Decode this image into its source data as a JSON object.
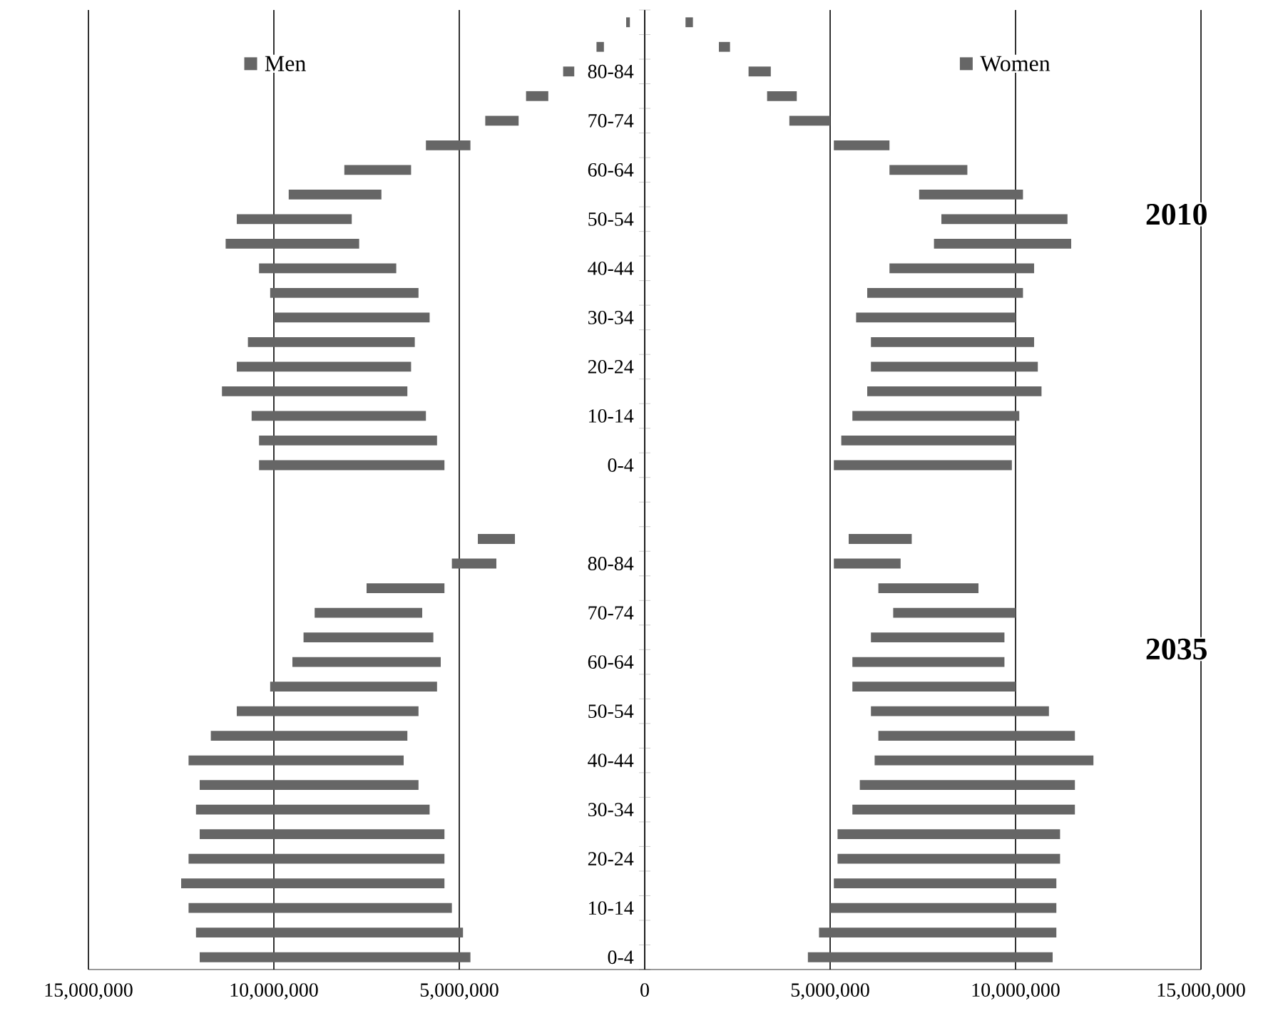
{
  "chart_data": {
    "type": "bar",
    "orientation": "horizontal",
    "categories": [
      null,
      null,
      "80-84",
      null,
      "70-74",
      null,
      "60-64",
      null,
      "50-54",
      null,
      "40-44",
      null,
      "30-34",
      null,
      "20-24",
      null,
      "10-14",
      null,
      "0-4",
      null,
      null,
      null,
      "80-84",
      null,
      "70-74",
      null,
      "60-64",
      null,
      "50-54",
      null,
      "40-44",
      null,
      "30-34",
      null,
      "20-24",
      null,
      "10-14",
      null,
      "0-4"
    ],
    "series": [
      {
        "name": "Men",
        "color": "#666666",
        "base": [
          -400000,
          -1100000,
          -1900000,
          -2600000,
          -3400000,
          -4700000,
          -6300000,
          -7100000,
          -7900000,
          -7700000,
          -6700000,
          -6100000,
          -5800000,
          -6200000,
          -6300000,
          -6400000,
          -5900000,
          -5600000,
          -5400000,
          null,
          null,
          -3500000,
          -4000000,
          -5400000,
          -6000000,
          -5700000,
          -5500000,
          -5600000,
          -6100000,
          -6400000,
          -6500000,
          -6100000,
          -5800000,
          -5400000,
          -5400000,
          -5400000,
          -5200000,
          -4900000,
          -4700000
        ],
        "values": [
          -100000,
          -200000,
          -300000,
          -600000,
          -900000,
          -1200000,
          -1800000,
          -2500000,
          -3100000,
          -3600000,
          -3700000,
          -4000000,
          -4200000,
          -4500000,
          -4700000,
          -5000000,
          -4700000,
          -4800000,
          -5000000,
          null,
          null,
          -1000000,
          -1200000,
          -2100000,
          -2900000,
          -3500000,
          -4000000,
          -4500000,
          -4900000,
          -5300000,
          -5800000,
          -5900000,
          -6300000,
          -6600000,
          -6900000,
          -7100000,
          -7100000,
          -7200000,
          -7300000
        ]
      },
      {
        "name": "Women",
        "color": "#666666",
        "base": [
          1100000,
          2000000,
          2800000,
          3300000,
          3900000,
          5100000,
          6600000,
          7400000,
          8000000,
          7800000,
          6600000,
          6000000,
          5700000,
          6100000,
          6100000,
          6000000,
          5600000,
          5300000,
          5100000,
          null,
          null,
          5500000,
          5100000,
          6300000,
          6700000,
          6100000,
          5600000,
          5600000,
          6100000,
          6300000,
          6200000,
          5800000,
          5600000,
          5200000,
          5200000,
          5100000,
          5000000,
          4700000,
          4400000
        ],
        "values": [
          200000,
          300000,
          600000,
          800000,
          1100000,
          1500000,
          2100000,
          2800000,
          3400000,
          3700000,
          3900000,
          4200000,
          4300000,
          4400000,
          4500000,
          4700000,
          4500000,
          4700000,
          4800000,
          null,
          null,
          1700000,
          1800000,
          2700000,
          3300000,
          3600000,
          4100000,
          4400000,
          4800000,
          5300000,
          5900000,
          5800000,
          6000000,
          6000000,
          6000000,
          6000000,
          6100000,
          6400000,
          6600000
        ]
      }
    ],
    "xlim": [
      -15000000,
      15000000
    ],
    "xticks": [
      {
        "value": -15000000,
        "label": "15,000,000"
      },
      {
        "value": -10000000,
        "label": "10,000,000"
      },
      {
        "value": -5000000,
        "label": "5,000,000"
      },
      {
        "value": 0,
        "label": "0"
      },
      {
        "value": 5000000,
        "label": "5,000,000"
      },
      {
        "value": 10000000,
        "label": "10,000,000"
      },
      {
        "value": 15000000,
        "label": "15,000,000"
      }
    ],
    "grid": "x",
    "legend": "top",
    "annotations": [
      "2010",
      "2035"
    ]
  }
}
